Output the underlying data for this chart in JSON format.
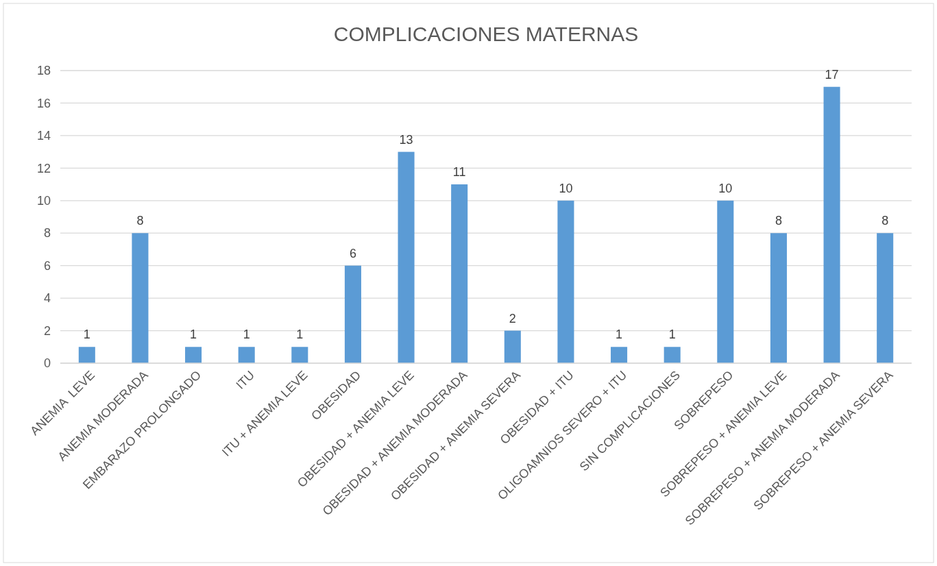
{
  "chart_data": {
    "type": "bar",
    "title": "COMPLICACIONES MATERNAS",
    "categories": [
      "ANEMIA  LEVE",
      "ANEMIA MODERADA",
      "EMBARAZO PROLONGADO",
      "ITU",
      "ITU + ANEMIA LEVE",
      "OBESIDAD",
      "OBESIDAD + ANEMIA LEVE",
      "OBESIDAD + ANEMIA MODERADA",
      "OBESIDAD + ANEMIA SEVERA",
      "OBESIDAD + ITU",
      "OLIGOAMNIOS SEVERO + ITU",
      "SIN COMPLICACIONES",
      "SOBREPESO",
      "SOBREPESO + ANEMIA LEVE",
      "SOBREPESO + ANEMIA MODERADA",
      "SOBREPESO + ANEMIA SEVERA"
    ],
    "values": [
      1,
      8,
      1,
      1,
      1,
      6,
      13,
      11,
      2,
      10,
      1,
      1,
      10,
      8,
      17,
      8
    ],
    "color": "#5b9bd5",
    "ylim": [
      0,
      18
    ],
    "yticks": [
      0,
      2,
      4,
      6,
      8,
      10,
      12,
      14,
      16,
      18
    ],
    "grid": "y",
    "data_labels": true
  }
}
